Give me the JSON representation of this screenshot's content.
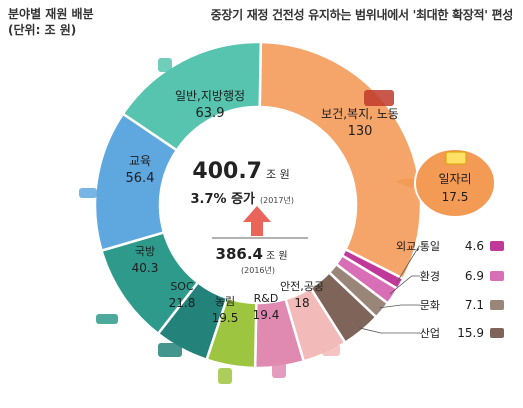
{
  "header": {
    "title": "분야별 재원 배분",
    "unit": "(단위: 조 원)",
    "subtitle": "중장기 재정 건전성 유지하는 범위내에서 '최대한 확장적' 편성"
  },
  "center": {
    "total_2017": "400.7",
    "unit": "조 원",
    "growth": "3.7% 증가",
    "year_2017": "(2017년)",
    "total_2016": "386.4",
    "year_2016": "(2016년)"
  },
  "chart_data": {
    "type": "pie",
    "title": "분야별 재원 배분",
    "unit": "조 원",
    "total": 400.7,
    "slices": [
      {
        "name": "보건, 복지, 노동",
        "value": 130,
        "label": "130",
        "color": "#F6A56A",
        "icon": "elderly-care-icon"
      },
      {
        "name": "외교, 통일",
        "value": 4.6,
        "label": "4.6",
        "color": "#C0399A",
        "icon": "handshake-icon"
      },
      {
        "name": "환경",
        "value": 6.9,
        "label": "6.9",
        "color": "#D86FB6",
        "icon": "tree-icon"
      },
      {
        "name": "문화",
        "value": 7.1,
        "label": "7.1",
        "color": "#9A8579",
        "icon": "camera-icon"
      },
      {
        "name": "산업",
        "value": 15.9,
        "label": "15.9",
        "color": "#7F6559",
        "icon": "factory-icon"
      },
      {
        "name": "안전, 공공",
        "value": 18,
        "label": "18",
        "color": "#F2BAB8",
        "icon": "cctv-icon"
      },
      {
        "name": "R&D",
        "value": 19.4,
        "label": "19.4",
        "color": "#E08AB2",
        "icon": "microscope-icon"
      },
      {
        "name": "농림",
        "value": 19.5,
        "label": "19.5",
        "color": "#9DC53F",
        "icon": "wheat-icon"
      },
      {
        "name": "SOC",
        "value": 21.8,
        "label": "21.8",
        "color": "#23837A",
        "icon": "tractor-icon"
      },
      {
        "name": "국방",
        "value": 40.3,
        "label": "40.3",
        "color": "#2E9A8B",
        "icon": "tank-icon"
      },
      {
        "name": "교육",
        "value": 56.4,
        "label": "56.4",
        "color": "#5FA8DF",
        "icon": "graduation-cap-icon"
      },
      {
        "name": "일반, 지방행정",
        "value": 63.9,
        "label": "63.9",
        "color": "#56C4AE",
        "icon": "building-icon"
      }
    ],
    "callout": {
      "name": "일자리",
      "value": 17.5,
      "label": "17.5",
      "parent": "보건, 복지, 노동",
      "color": "#F39A55",
      "icon": "money-stack-icon"
    }
  }
}
